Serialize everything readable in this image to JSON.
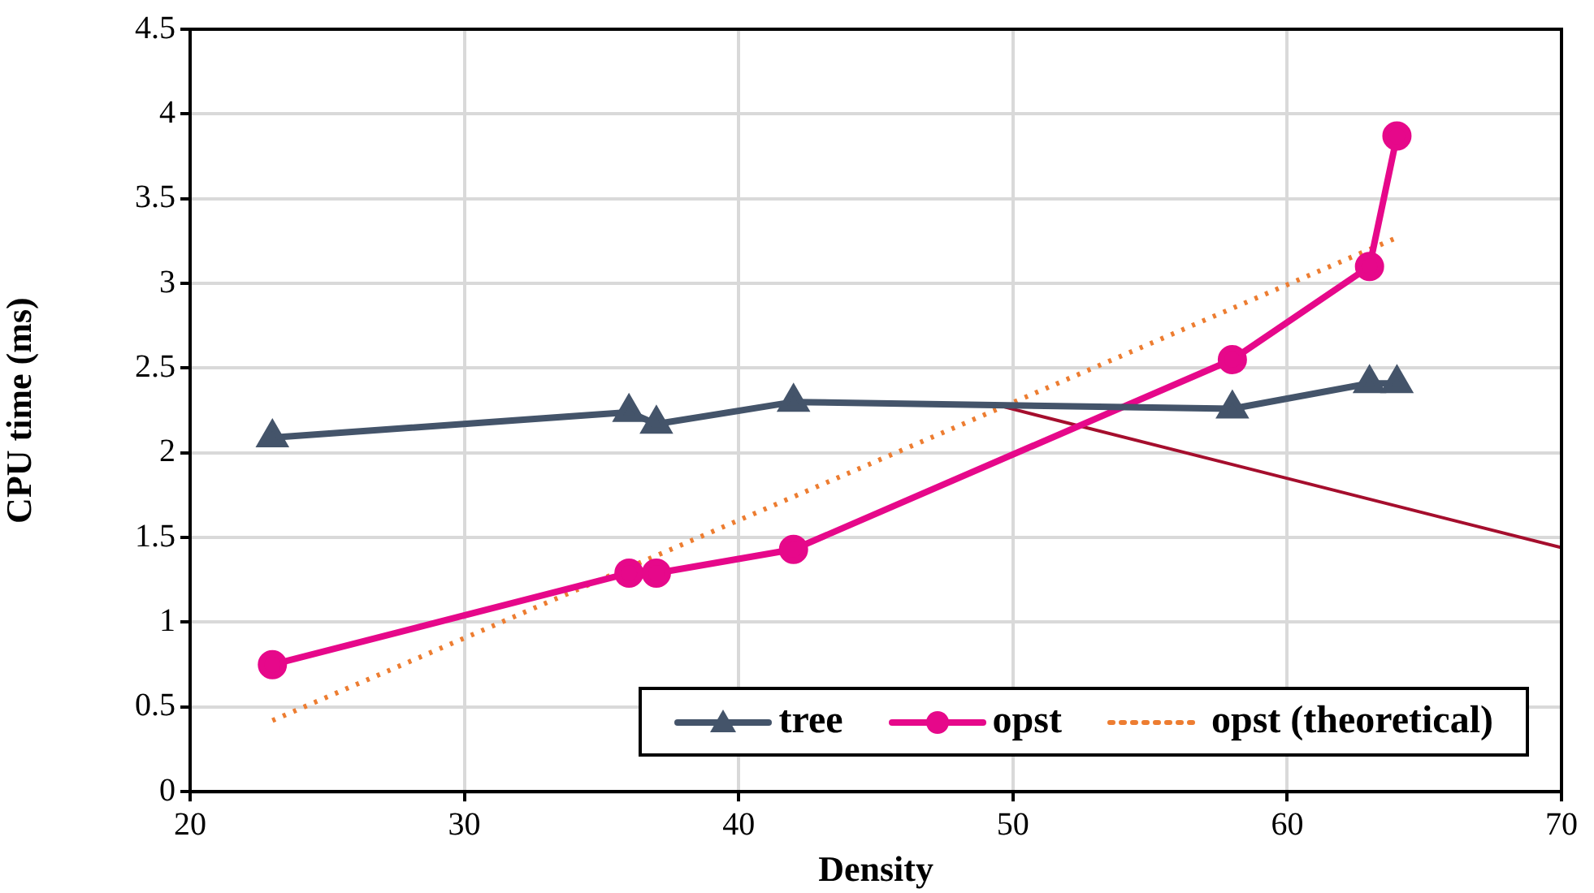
{
  "chart_data": {
    "type": "line",
    "xlabel": "Density",
    "ylabel": "CPU time (ms)",
    "xlim": [
      20,
      70
    ],
    "xticks": [
      20,
      30,
      40,
      50,
      60,
      70
    ],
    "ylim": [
      0,
      4.5
    ],
    "yticks": [
      0,
      0.5,
      1,
      1.5,
      2,
      2.5,
      3,
      3.5,
      4,
      4.5
    ],
    "grid": true,
    "legend": "bottom right",
    "series": [
      {
        "name": "tree",
        "color": "#44546a",
        "marker": "triangle",
        "line_style": "solid",
        "x": [
          23,
          36,
          37,
          42,
          58,
          63,
          64
        ],
        "values": [
          2.09,
          2.24,
          2.17,
          2.3,
          2.26,
          2.41,
          2.41
        ]
      },
      {
        "name": "opst",
        "color": "#e6088a",
        "marker": "circle",
        "line_style": "solid",
        "x": [
          23,
          36,
          37,
          42,
          58,
          63,
          64
        ],
        "values": [
          0.75,
          1.29,
          1.29,
          1.43,
          2.55,
          3.1,
          3.87
        ]
      },
      {
        "name": "opst (theoretical)",
        "color": "#ed7d31",
        "marker": "none",
        "line_style": "dotted",
        "x": [
          23,
          64
        ],
        "values": [
          0.42,
          3.27
        ]
      },
      {
        "color": "#a50e2d",
        "marker": "none",
        "line_style": "solid",
        "x": [
          49.7,
          70
        ],
        "values": [
          2.27,
          1.44
        ]
      }
    ]
  }
}
